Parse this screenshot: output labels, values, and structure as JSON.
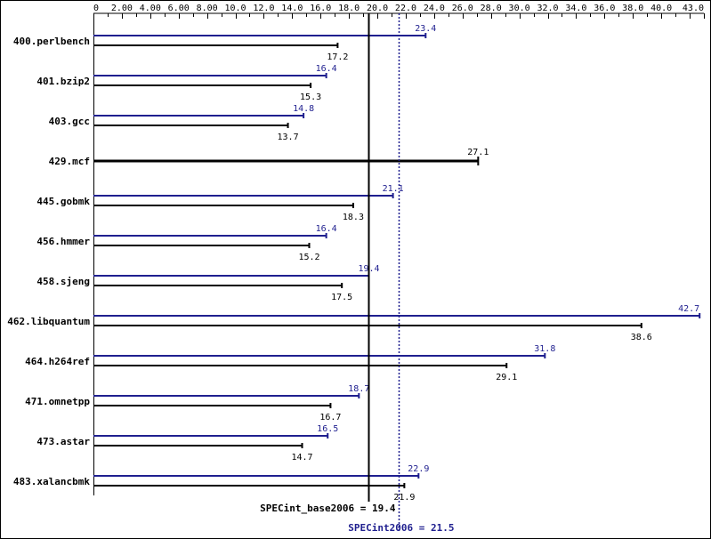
{
  "chart_data": {
    "type": "bar",
    "orientation": "horizontal",
    "xlim": [
      0,
      43.0
    ],
    "tick_labels": [
      "0",
      "2.00",
      "4.00",
      "6.00",
      "8.00",
      "10.0",
      "12.0",
      "14.0",
      "16.0",
      "18.0",
      "20.0",
      "22.0",
      "24.0",
      "26.0",
      "28.0",
      "30.0",
      "32.0",
      "34.0",
      "36.0",
      "38.0",
      "40.0",
      "43.0"
    ],
    "tick_values": [
      0,
      2,
      4,
      6,
      8,
      10,
      12,
      14,
      16,
      18,
      20,
      22,
      24,
      26,
      28,
      30,
      32,
      34,
      36,
      38,
      40,
      43
    ],
    "categories": [
      "400.perlbench",
      "401.bzip2",
      "403.gcc",
      "429.mcf",
      "445.gobmk",
      "456.hmmer",
      "458.sjeng",
      "462.libquantum",
      "464.h264ref",
      "471.omnetpp",
      "473.astar",
      "483.xalancbmk"
    ],
    "series": [
      {
        "role": "peak",
        "values": [
          23.4,
          16.4,
          14.8,
          27.1,
          21.1,
          16.4,
          19.4,
          42.7,
          31.8,
          18.7,
          16.5,
          22.9
        ],
        "labels": [
          "23.4",
          "16.4",
          "14.8",
          "",
          "21.1",
          "16.4",
          "19.4",
          "42.7",
          "31.8",
          "18.7",
          "16.5",
          "22.9"
        ]
      },
      {
        "role": "base",
        "values": [
          17.2,
          15.3,
          13.7,
          27.1,
          18.3,
          15.2,
          17.5,
          38.6,
          29.1,
          16.7,
          14.7,
          21.9
        ],
        "labels": [
          "17.2",
          "15.3",
          "13.7",
          "27.1",
          "18.3",
          "15.2",
          "17.5",
          "38.6",
          "29.1",
          "16.7",
          "14.7",
          "21.9"
        ]
      }
    ],
    "summary": {
      "base_label": "SPECint_base2006 = 19.4",
      "base_value": 19.4,
      "peak_label": "SPECint2006 = 21.5",
      "peak_value": 21.5
    },
    "colors": {
      "peak": "#1f1f8f",
      "base": "#000000"
    }
  }
}
